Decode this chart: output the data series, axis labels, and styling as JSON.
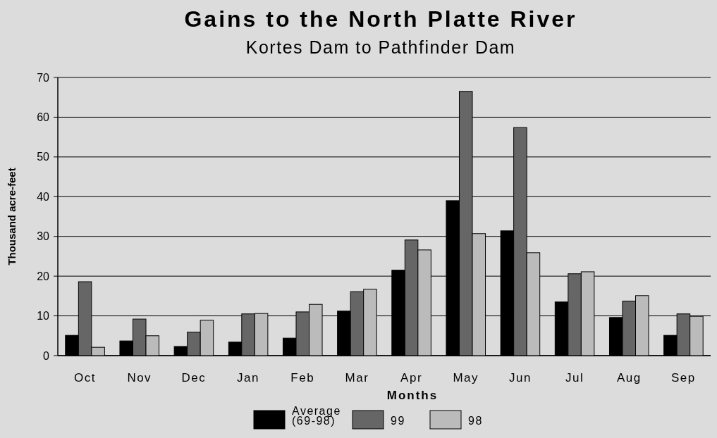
{
  "chart_data": {
    "type": "bar",
    "title": "Gains to the North Platte River",
    "subtitle": "Kortes Dam to Pathfinder Dam",
    "xlabel": "Months",
    "ylabel": "Thousand acre-feet",
    "categories": [
      "Oct",
      "Nov",
      "Dec",
      "Jan",
      "Feb",
      "Mar",
      "Apr",
      "May",
      "Jun",
      "Jul",
      "Aug",
      "Sep"
    ],
    "series": [
      {
        "name": "Average (69-98)",
        "color": "#000000",
        "values": [
          5.1,
          3.7,
          2.3,
          3.4,
          4.4,
          11.2,
          21.5,
          39.0,
          31.4,
          13.5,
          9.6,
          5.1
        ]
      },
      {
        "name": "99",
        "color": "#666666",
        "values": [
          18.6,
          9.2,
          5.9,
          10.5,
          11.0,
          16.1,
          29.1,
          66.5,
          57.4,
          20.6,
          13.7,
          10.5
        ]
      },
      {
        "name": "98",
        "color": "#bbbbbb",
        "values": [
          2.1,
          5.0,
          8.9,
          10.6,
          12.9,
          16.7,
          26.6,
          30.7,
          25.9,
          21.1,
          15.1,
          9.9
        ]
      }
    ],
    "ylim": [
      0,
      70
    ],
    "yticks": [
      0,
      10,
      20,
      30,
      40,
      50,
      60,
      70
    ],
    "grid": "y",
    "legend": "bottom"
  }
}
